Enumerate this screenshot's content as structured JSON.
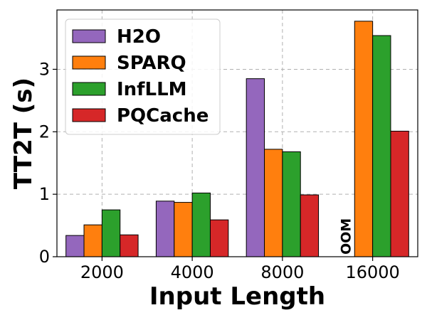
{
  "chart_data": {
    "type": "bar",
    "title": "",
    "xlabel": "Input Length",
    "ylabel": "TT2T (s)",
    "categories": [
      "2000",
      "4000",
      "8000",
      "16000"
    ],
    "ylim": [
      0,
      3.95
    ],
    "yticks": [
      0,
      1,
      2,
      3
    ],
    "grid": true,
    "legend_position": "top-left",
    "series": [
      {
        "name": "H2O",
        "color": "#9467bd",
        "values": [
          0.34,
          0.89,
          2.85,
          null
        ]
      },
      {
        "name": "SPARQ",
        "color": "#ff7f0e",
        "values": [
          0.51,
          0.87,
          1.72,
          3.77
        ]
      },
      {
        "name": "InfLLM",
        "color": "#2ca02c",
        "values": [
          0.75,
          1.02,
          1.68,
          3.54
        ]
      },
      {
        "name": "PQCache",
        "color": "#d62728",
        "values": [
          0.35,
          0.59,
          0.99,
          2.01
        ]
      }
    ],
    "annotations": [
      {
        "text": "OOM",
        "series": "H2O",
        "category": "16000"
      }
    ]
  }
}
